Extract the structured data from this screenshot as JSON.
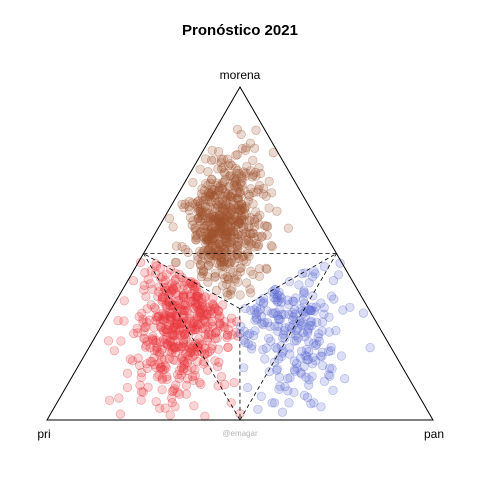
{
  "chart_data": {
    "type": "scatter",
    "subtype": "ternary",
    "title": "Pronóstico 2021",
    "vertices": {
      "top": "morena",
      "left": "pri",
      "right": "pan"
    },
    "watermark": "@emagar",
    "grid": false,
    "legend": "none",
    "series": [
      {
        "key": "morena",
        "color": "#a0522d",
        "n": 560,
        "mean": {
          "pri": 0.24,
          "pan": 0.16
        },
        "sd": {
          "pri": 0.07,
          "pan": 0.07
        }
      },
      {
        "key": "pri",
        "color": "#e8363d",
        "n": 480,
        "mean": {
          "pri": 0.47,
          "pan": 0.2
        },
        "sd": {
          "pri": 0.11,
          "pan": 0.09
        }
      },
      {
        "key": "pan",
        "color": "#5b6ad3",
        "n": 230,
        "mean": {
          "pri": 0.22,
          "pan": 0.46
        },
        "sd": {
          "pri": 0.09,
          "pan": 0.11
        }
      }
    ],
    "winner_boundaries": [
      {
        "from": {
          "morena": 0.333,
          "pri": 0.333,
          "pan": 0.333
        },
        "to": {
          "morena": 0.5,
          "pri": 0.5,
          "pan": 0.0
        }
      },
      {
        "from": {
          "morena": 0.333,
          "pri": 0.333,
          "pan": 0.333
        },
        "to": {
          "morena": 0.5,
          "pri": 0.0,
          "pan": 0.5
        }
      },
      {
        "from": {
          "morena": 0.333,
          "pri": 0.333,
          "pan": 0.333
        },
        "to": {
          "morena": 0.0,
          "pri": 0.5,
          "pan": 0.5
        }
      }
    ],
    "majority_boundaries": [
      {
        "from": {
          "morena": 0.5,
          "pri": 0.0,
          "pan": 0.5
        },
        "to": {
          "morena": 0.5,
          "pri": 0.5,
          "pan": 0.0
        }
      },
      {
        "from": {
          "morena": 0.0,
          "pri": 0.5,
          "pan": 0.5
        },
        "to": {
          "morena": 0.5,
          "pri": 0.0,
          "pan": 0.5
        }
      },
      {
        "from": {
          "morena": 0.0,
          "pri": 0.5,
          "pan": 0.5
        },
        "to": {
          "morena": 0.5,
          "pri": 0.5,
          "pan": 0.0
        }
      }
    ]
  }
}
